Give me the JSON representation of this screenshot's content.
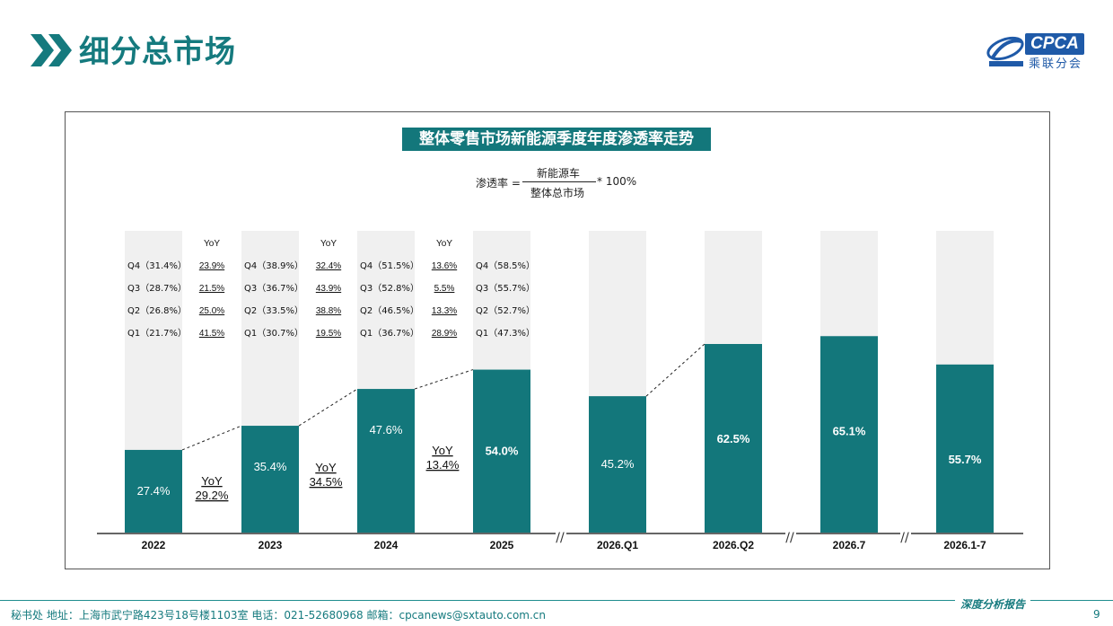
{
  "header": {
    "title": "细分总市场"
  },
  "logo": {
    "text": "CPCA",
    "subtext": "乘联分会"
  },
  "formula": {
    "label": "渗透率 =",
    "numerator": "新能源车",
    "denominator": "整体总市场",
    "multiplier": "* 100%"
  },
  "chart_data": {
    "type": "bar",
    "title": "整体零售市场新能源季度年度渗透率走势",
    "ylim": [
      0,
      100
    ],
    "bars": [
      {
        "category": "2022",
        "value": 27.4,
        "label": "27.4%"
      },
      {
        "category": "2023",
        "value": 35.4,
        "label": "35.4%"
      },
      {
        "category": "2024",
        "value": 47.6,
        "label": "47.6%"
      },
      {
        "category": "2025",
        "value": 54.0,
        "label": "54.0%"
      },
      {
        "category": "2026.Q1",
        "value": 45.2,
        "label": "45.2%"
      },
      {
        "category": "2026.Q2",
        "value": 62.5,
        "label": "62.5%"
      },
      {
        "category": "2026.7",
        "value": 65.1,
        "label": "65.1%"
      },
      {
        "category": "2026.1-7",
        "value": 55.7,
        "label": "55.7%"
      }
    ],
    "yoy_annual": [
      {
        "after": "2022",
        "label": "YoY",
        "value": "29.2%"
      },
      {
        "after": "2023",
        "label": "YoY",
        "value": "34.5%"
      },
      {
        "after": "2024",
        "label": "YoY",
        "value": "13.4%"
      }
    ],
    "quarter_details": [
      {
        "year": "2022",
        "rows": [
          "Q4（31.4%）",
          "Q3（28.7%）",
          "Q2（26.8%）",
          "Q1（21.7%）"
        ],
        "yoy_header": "YoY",
        "yoy": [
          "23.9%",
          "21.5%",
          "25.0%",
          "41.5%"
        ]
      },
      {
        "year": "2023",
        "rows": [
          "Q4（38.9%）",
          "Q3（36.7%）",
          "Q2（33.5%）",
          "Q1（30.7%）"
        ],
        "yoy_header": "YoY",
        "yoy": [
          "32.4%",
          "43.9%",
          "38.8%",
          "19.5%"
        ]
      },
      {
        "year": "2024",
        "rows": [
          "Q4（51.5%）",
          "Q3（52.8%）",
          "Q2（46.5%）",
          "Q1（36.7%）"
        ],
        "yoy_header": "YoY",
        "yoy": [
          "13.6%",
          "5.5%",
          "13.3%",
          "28.9%"
        ]
      },
      {
        "year": "2025",
        "rows": [
          "Q4（58.5%）",
          "Q3（55.7%）",
          "Q2（52.7%）",
          "Q1（47.3%）"
        ],
        "yoy_header": "",
        "yoy": []
      }
    ],
    "axis_breaks": [
      "//",
      "//",
      "//"
    ],
    "colors": {
      "bar": "#13777b",
      "background_bar": "#f0f0f0",
      "axis": "#333333"
    }
  },
  "footer": {
    "text": "秘书处   地址：上海市武宁路423号18号楼1103室   电话：021-52680968   邮箱：cpcanews@sxtauto.com.cn",
    "report": "深度分析报告",
    "page": "9"
  }
}
